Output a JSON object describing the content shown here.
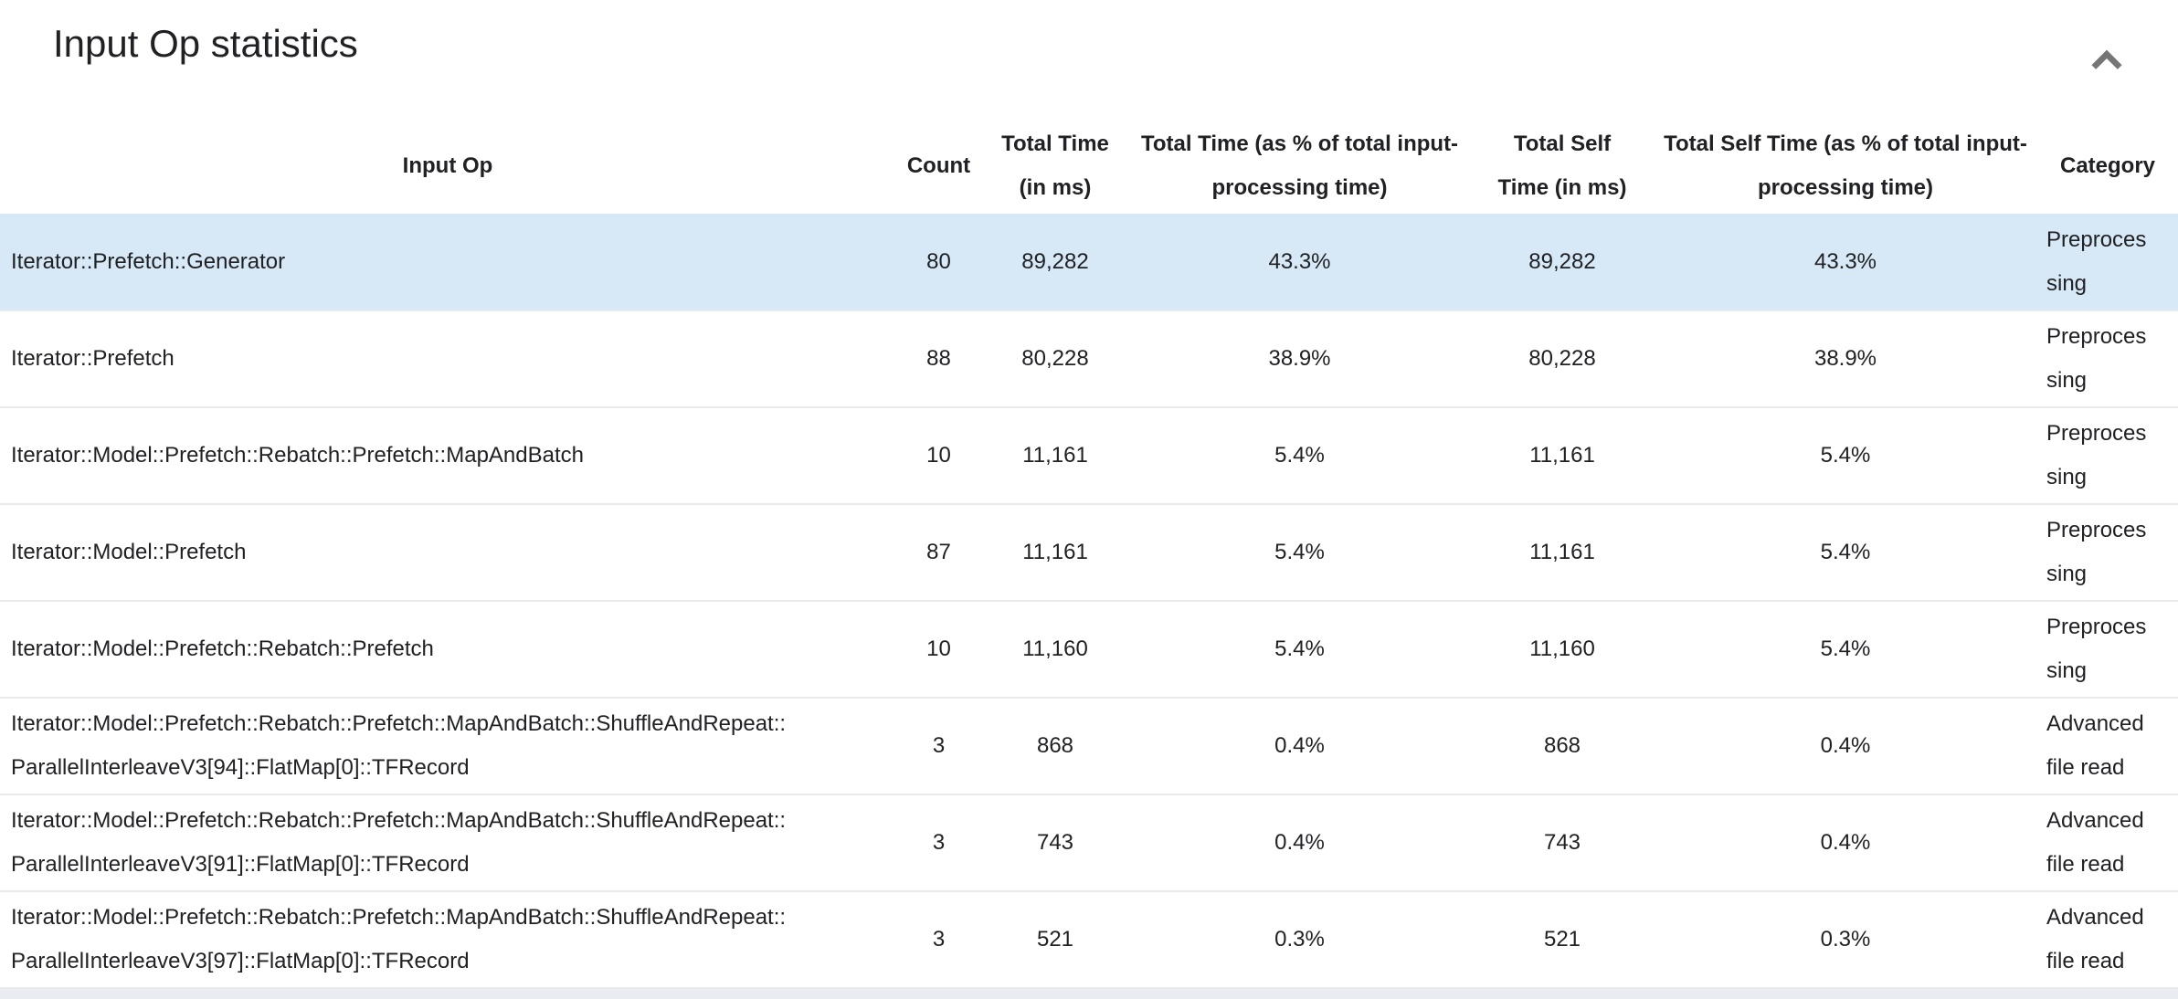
{
  "section": {
    "title": "Input Op statistics",
    "collapse_icon": "chevron-up"
  },
  "colors": {
    "highlight_row": "#d7e8f7",
    "row_border": "#e8eaed",
    "text": "#202124",
    "chevron": "#757575",
    "partial_row": "#e9edf2"
  },
  "table": {
    "columns": [
      {
        "id": "input_op",
        "label": "Input Op"
      },
      {
        "id": "count",
        "label": "Count"
      },
      {
        "id": "total_time_ms",
        "label": "Total Time (in ms)"
      },
      {
        "id": "total_time_pct",
        "label": "Total Time (as % of total input-processing time)"
      },
      {
        "id": "total_self_time_ms",
        "label": "Total Self Time (in ms)"
      },
      {
        "id": "total_self_time_pct",
        "label": "Total Self Time (as % of total input-processing time)"
      },
      {
        "id": "category",
        "label": "Category"
      }
    ],
    "rows": [
      {
        "input_op": "Iterator::Prefetch::Generator",
        "count": "80",
        "total_time_ms": "89,282",
        "total_time_pct": "43.3%",
        "total_self_time_ms": "89,282",
        "total_self_time_pct": "43.3%",
        "category": "Preprocessing",
        "highlighted": true
      },
      {
        "input_op": "Iterator::Prefetch",
        "count": "88",
        "total_time_ms": "80,228",
        "total_time_pct": "38.9%",
        "total_self_time_ms": "80,228",
        "total_self_time_pct": "38.9%",
        "category": "Preprocessing",
        "highlighted": false
      },
      {
        "input_op": "Iterator::Model::Prefetch::Rebatch::Prefetch::MapAndBatch",
        "count": "10",
        "total_time_ms": "11,161",
        "total_time_pct": "5.4%",
        "total_self_time_ms": "11,161",
        "total_self_time_pct": "5.4%",
        "category": "Preprocessing",
        "highlighted": false
      },
      {
        "input_op": "Iterator::Model::Prefetch",
        "count": "87",
        "total_time_ms": "11,161",
        "total_time_pct": "5.4%",
        "total_self_time_ms": "11,161",
        "total_self_time_pct": "5.4%",
        "category": "Preprocessing",
        "highlighted": false
      },
      {
        "input_op": "Iterator::Model::Prefetch::Rebatch::Prefetch",
        "count": "10",
        "total_time_ms": "11,160",
        "total_time_pct": "5.4%",
        "total_self_time_ms": "11,160",
        "total_self_time_pct": "5.4%",
        "category": "Preprocessing",
        "highlighted": false
      },
      {
        "input_op": "Iterator::Model::Prefetch::Rebatch::Prefetch::MapAndBatch::ShuffleAndRepeat::ParallelInterleaveV3[94]::FlatMap[0]::TFRecord",
        "count": "3",
        "total_time_ms": "868",
        "total_time_pct": "0.4%",
        "total_self_time_ms": "868",
        "total_self_time_pct": "0.4%",
        "category": "Advanced file read",
        "highlighted": false
      },
      {
        "input_op": "Iterator::Model::Prefetch::Rebatch::Prefetch::MapAndBatch::ShuffleAndRepeat::ParallelInterleaveV3[91]::FlatMap[0]::TFRecord",
        "count": "3",
        "total_time_ms": "743",
        "total_time_pct": "0.4%",
        "total_self_time_ms": "743",
        "total_self_time_pct": "0.4%",
        "category": "Advanced file read",
        "highlighted": false
      },
      {
        "input_op": "Iterator::Model::Prefetch::Rebatch::Prefetch::MapAndBatch::ShuffleAndRepeat::ParallelInterleaveV3[97]::FlatMap[0]::TFRecord",
        "count": "3",
        "total_time_ms": "521",
        "total_time_pct": "0.3%",
        "total_self_time_ms": "521",
        "total_self_time_pct": "0.3%",
        "category": "Advanced file read",
        "highlighted": false
      }
    ]
  }
}
